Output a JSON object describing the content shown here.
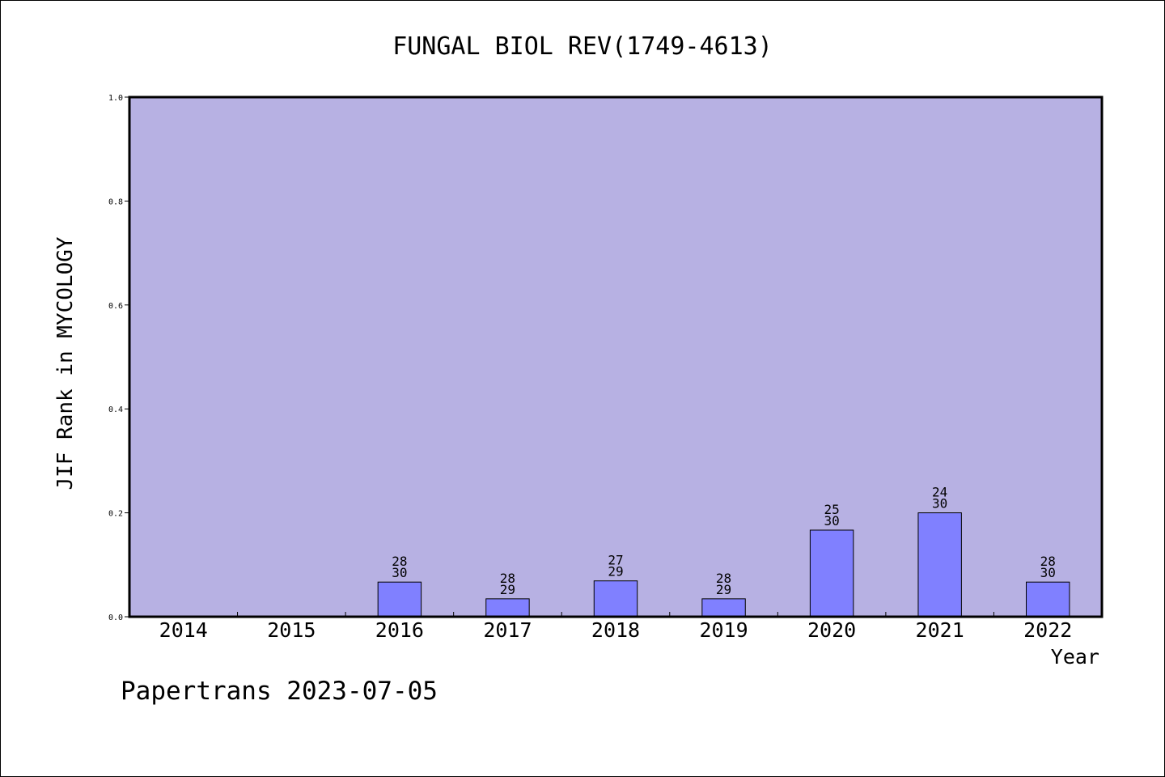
{
  "chart_data": {
    "type": "bar",
    "title": "FUNGAL BIOL REV(1749-4613)",
    "xlabel": "Year",
    "ylabel": "JIF Rank in MYCOLOGY",
    "categories": [
      "2014",
      "2015",
      "2016",
      "2017",
      "2018",
      "2019",
      "2020",
      "2021",
      "2022"
    ],
    "series": [
      {
        "values": [
          null,
          null,
          0.0667,
          0.0345,
          0.069,
          0.0345,
          0.1667,
          0.2,
          0.0667
        ],
        "rank": [
          null,
          null,
          "28",
          "28",
          "27",
          "28",
          "25",
          "24",
          "28"
        ],
        "total": [
          null,
          null,
          "30",
          "29",
          "29",
          "29",
          "30",
          "30",
          "30"
        ]
      }
    ],
    "ylim": [
      0,
      1
    ],
    "yticks": [
      "0.0",
      "0.2",
      "0.4",
      "0.6",
      "0.8",
      "1.0"
    ],
    "grid": false,
    "colors": {
      "plot_background": "#b7b1e3",
      "bar_fill": "#8080ff",
      "bar_stroke": "#000000",
      "axis": "#000000"
    }
  },
  "footer": {
    "text": "Papertrans 2023-07-05"
  }
}
